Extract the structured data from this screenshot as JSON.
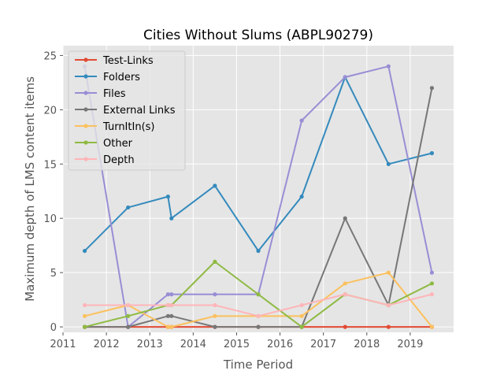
{
  "chart_data": {
    "type": "line",
    "title": "Cities Without Slums (ABPL90279)",
    "xlabel": "Time Period",
    "ylabel": "Maximum depth of LMS content items",
    "xlim": [
      2011,
      2020
    ],
    "ylim": [
      -0.5,
      25.9
    ],
    "x_ticks": [
      2011,
      2012,
      2013,
      2014,
      2015,
      2016,
      2017,
      2018,
      2019
    ],
    "y_ticks": [
      0,
      5,
      10,
      15,
      20,
      25
    ],
    "grid": true,
    "legend_position": "top-left",
    "background": "#e5e5e5",
    "series": [
      {
        "name": "Test-Links",
        "color": "#e24a33",
        "x": [
          2011.5,
          2012.5,
          2013.42,
          2013.5,
          2014.5,
          2015.5,
          2016.5,
          2017.5,
          2018.5,
          2019.5
        ],
        "y": [
          0,
          0,
          0,
          0,
          0,
          0,
          0,
          0,
          0,
          0
        ]
      },
      {
        "name": "Folders",
        "color": "#348abd",
        "x": [
          2011.5,
          2012.5,
          2013.42,
          2013.5,
          2014.5,
          2015.5,
          2016.5,
          2017.5,
          2018.5,
          2019.5
        ],
        "y": [
          7,
          11,
          12,
          10,
          13,
          7,
          12,
          23,
          15,
          16
        ]
      },
      {
        "name": "Files",
        "color": "#988ed5",
        "x": [
          2011.5,
          2012.5,
          2013.42,
          2013.5,
          2014.5,
          2015.5,
          2016.5,
          2017.5,
          2018.5,
          2019.5
        ],
        "y": [
          24,
          0,
          3,
          3,
          3,
          3,
          19,
          23,
          24,
          5
        ]
      },
      {
        "name": "External Links",
        "color": "#777777",
        "x": [
          2011.5,
          2012.5,
          2013.42,
          2013.5,
          2014.5,
          2015.5,
          2016.5,
          2017.5,
          2018.5,
          2019.5
        ],
        "y": [
          0,
          0,
          1,
          1,
          0,
          0,
          0,
          10,
          2,
          22
        ]
      },
      {
        "name": "TurnItIn(s)",
        "color": "#fbc15e",
        "x": [
          2011.5,
          2012.5,
          2013.42,
          2013.5,
          2014.5,
          2015.5,
          2016.5,
          2017.5,
          2018.5,
          2019.5
        ],
        "y": [
          1,
          2,
          0,
          0,
          1,
          1,
          1,
          4,
          5,
          0
        ]
      },
      {
        "name": "Other",
        "color": "#8eba42",
        "x": [
          2011.5,
          2012.5,
          2013.42,
          2013.5,
          2014.5,
          2015.5,
          2016.5,
          2017.5,
          2018.5,
          2019.5
        ],
        "y": [
          0,
          1,
          2,
          2,
          6,
          3,
          0,
          3,
          2,
          4
        ]
      },
      {
        "name": "Depth",
        "color": "#ffb5b8",
        "x": [
          2011.5,
          2012.5,
          2013.42,
          2013.5,
          2014.5,
          2015.5,
          2016.5,
          2017.5,
          2018.5,
          2019.5
        ],
        "y": [
          2,
          2,
          2,
          2,
          2,
          1,
          2,
          3,
          2,
          3
        ]
      }
    ]
  }
}
